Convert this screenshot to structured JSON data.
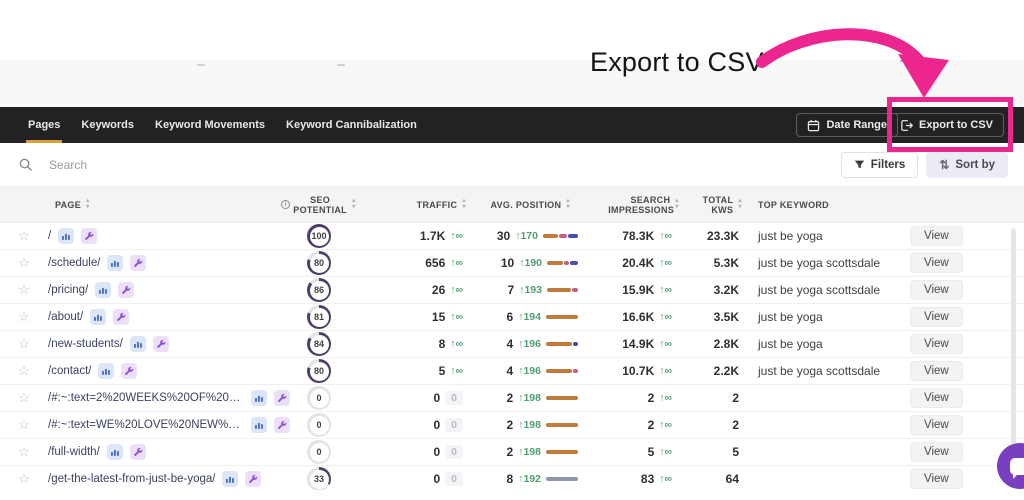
{
  "annotation": {
    "label": "Export to CSV",
    "accent_color": "#ED268F"
  },
  "nav": {
    "tabs": [
      {
        "label": "Pages",
        "active": true
      },
      {
        "label": "Keywords",
        "active": false
      },
      {
        "label": "Keyword Movements",
        "active": false
      },
      {
        "label": "Keyword Cannibalization",
        "active": false
      }
    ],
    "active_underline_color": "#D9A33C",
    "date_range_label": "Date Range",
    "export_label": "Export to CSV"
  },
  "toolbar": {
    "search_placeholder": "Search",
    "filters_label": "Filters",
    "sort_by_label": "Sort by"
  },
  "table": {
    "headers": {
      "page": "PAGE",
      "seo_potential": "SEO POTENTIAL",
      "traffic": "TRAFFIC",
      "avg_position": "AVG. POSITION",
      "search_impressions": "SEARCH IMPRESSIONS",
      "total_kws": "TOTAL KWS",
      "top_keyword": "TOP KEYWORD"
    },
    "view_label": "View",
    "positive_color": "#4EA071",
    "ring_color": "#4E3D66",
    "rows": [
      {
        "page": "/",
        "seo_potential": 100,
        "traffic": "1.7K",
        "traffic_change": "∞",
        "traffic_zero": null,
        "position": "30",
        "position_change": "170",
        "impressions": "78.3K",
        "impressions_change": "∞",
        "total_kws": "23.3K",
        "top_keyword": "just be yoga",
        "spark": [
          [
            "#C07A3A",
            15
          ],
          [
            "#C2608C",
            8
          ],
          [
            "#4053A8",
            10
          ]
        ]
      },
      {
        "page": "/schedule/",
        "seo_potential": 80,
        "traffic": "656",
        "traffic_change": "∞",
        "traffic_zero": null,
        "position": "10",
        "position_change": "190",
        "impressions": "20.4K",
        "impressions_change": "∞",
        "total_kws": "5.3K",
        "top_keyword": "just be yoga scottsdale",
        "spark": [
          [
            "#C07A3A",
            16
          ],
          [
            "#C2608C",
            5
          ],
          [
            "#4053A8",
            8
          ]
        ]
      },
      {
        "page": "/pricing/",
        "seo_potential": 86,
        "traffic": "26",
        "traffic_change": "∞",
        "traffic_zero": null,
        "position": "7",
        "position_change": "193",
        "impressions": "15.9K",
        "impressions_change": "∞",
        "total_kws": "3.2K",
        "top_keyword": "just be yoga scottsdale",
        "spark": [
          [
            "#C07A3A",
            24
          ],
          [
            "#C2608C",
            6
          ]
        ]
      },
      {
        "page": "/about/",
        "seo_potential": 81,
        "traffic": "15",
        "traffic_change": "∞",
        "traffic_zero": null,
        "position": "6",
        "position_change": "194",
        "impressions": "16.6K",
        "impressions_change": "∞",
        "total_kws": "3.5K",
        "top_keyword": "just be yoga",
        "spark": [
          [
            "#C07A3A",
            32
          ]
        ]
      },
      {
        "page": "/new-students/",
        "seo_potential": 84,
        "traffic": "8",
        "traffic_change": "∞",
        "traffic_zero": null,
        "position": "4",
        "position_change": "196",
        "impressions": "14.9K",
        "impressions_change": "∞",
        "total_kws": "2.8K",
        "top_keyword": "just be yoga",
        "spark": [
          [
            "#C07A3A",
            26
          ],
          [
            "#4053A8",
            5
          ]
        ]
      },
      {
        "page": "/contact/",
        "seo_potential": 80,
        "traffic": "5",
        "traffic_change": "∞",
        "traffic_zero": null,
        "position": "4",
        "position_change": "196",
        "impressions": "10.7K",
        "impressions_change": "∞",
        "total_kws": "2.2K",
        "top_keyword": "just be yoga scottsdale",
        "spark": [
          [
            "#C07A3A",
            26
          ],
          [
            "#C2608C",
            5
          ]
        ]
      },
      {
        "page": "/#:~:text=2%20WEEKS%20OF%20UNLIMIT...",
        "seo_potential": 0,
        "traffic": "0",
        "traffic_change": null,
        "traffic_zero": "0",
        "position": "2",
        "position_change": "198",
        "impressions": "2",
        "impressions_change": "∞",
        "total_kws": "2",
        "top_keyword": "",
        "spark": [
          [
            "#C07A3A",
            32
          ]
        ]
      },
      {
        "page": "/#:~:text=WE%20LOVE%20NEW%20STUDE...",
        "seo_potential": 0,
        "traffic": "0",
        "traffic_change": null,
        "traffic_zero": "0",
        "position": "2",
        "position_change": "198",
        "impressions": "2",
        "impressions_change": "∞",
        "total_kws": "2",
        "top_keyword": "",
        "spark": [
          [
            "#C07A3A",
            32
          ]
        ]
      },
      {
        "page": "/full-width/",
        "seo_potential": 0,
        "traffic": "0",
        "traffic_change": null,
        "traffic_zero": "0",
        "position": "2",
        "position_change": "198",
        "impressions": "5",
        "impressions_change": "∞",
        "total_kws": "5",
        "top_keyword": "",
        "spark": [
          [
            "#C07A3A",
            32
          ]
        ]
      },
      {
        "page": "/get-the-latest-from-just-be-yoga/",
        "seo_potential": 33,
        "traffic": "0",
        "traffic_change": null,
        "traffic_zero": "0",
        "position": "8",
        "position_change": "192",
        "impressions": "83",
        "impressions_change": "∞",
        "total_kws": "64",
        "top_keyword": "",
        "spark": [
          [
            "#8C96AD",
            32
          ]
        ]
      }
    ]
  },
  "chat_widget": {
    "color": "#7A3FC0"
  }
}
